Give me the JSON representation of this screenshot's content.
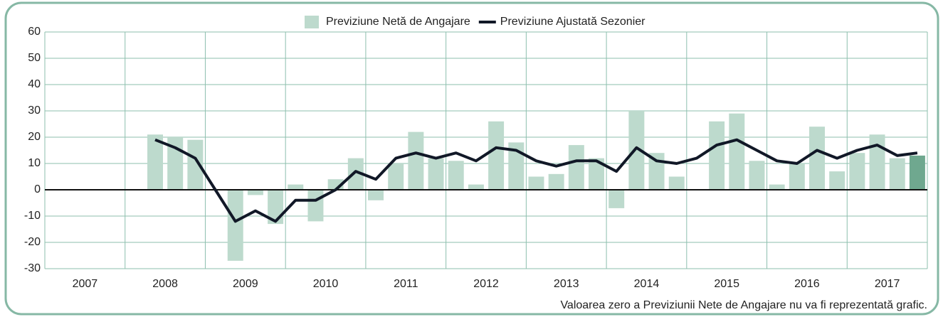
{
  "chart_data": {
    "type": "bar",
    "legend": "top",
    "categories": [
      "2007",
      null,
      null,
      null,
      "2008",
      null,
      null,
      null,
      "2009",
      null,
      null,
      null,
      "2010",
      null,
      null,
      null,
      "2011",
      null,
      null,
      null,
      "2012",
      null,
      null,
      null,
      "2013",
      null,
      null,
      null,
      "2014",
      null,
      null,
      null,
      "2015",
      null,
      null,
      null,
      "2016",
      null,
      null,
      null,
      "2017",
      null,
      null,
      null
    ],
    "series": [
      {
        "name": "Previziune Netă de Angajare",
        "type": "bar",
        "color": "#bddacd",
        "highlight_color": "#6fa88f",
        "values": [
          null,
          null,
          null,
          null,
          null,
          21,
          20,
          19,
          0,
          -27,
          -2,
          -13,
          2,
          -12,
          4,
          12,
          -4,
          10,
          22,
          12,
          11,
          2,
          26,
          18,
          5,
          6,
          17,
          12,
          -7,
          30,
          14,
          5,
          0,
          26,
          29,
          11,
          2,
          10,
          24,
          7,
          14,
          21,
          12,
          13
        ]
      },
      {
        "name": "Previziune Ajustată Sezonier",
        "type": "line",
        "color": "#111827",
        "values": [
          null,
          null,
          null,
          null,
          null,
          19,
          16,
          12,
          0,
          -12,
          -8,
          -12,
          -4,
          -4,
          0,
          7,
          4,
          12,
          14,
          12,
          14,
          11,
          16,
          15,
          11,
          9,
          11,
          11,
          7,
          16,
          11,
          10,
          12,
          17,
          19,
          15,
          11,
          10,
          15,
          12,
          15,
          17,
          13,
          14
        ]
      }
    ],
    "ylim": [
      -30,
      60
    ],
    "yticks": [
      -30,
      -20,
      -10,
      0,
      10,
      20,
      30,
      40,
      50,
      60
    ],
    "grid": true,
    "note": "Valoarea zero a Previziunii Nete de Angajare nu va fi reprezentată grafic."
  }
}
